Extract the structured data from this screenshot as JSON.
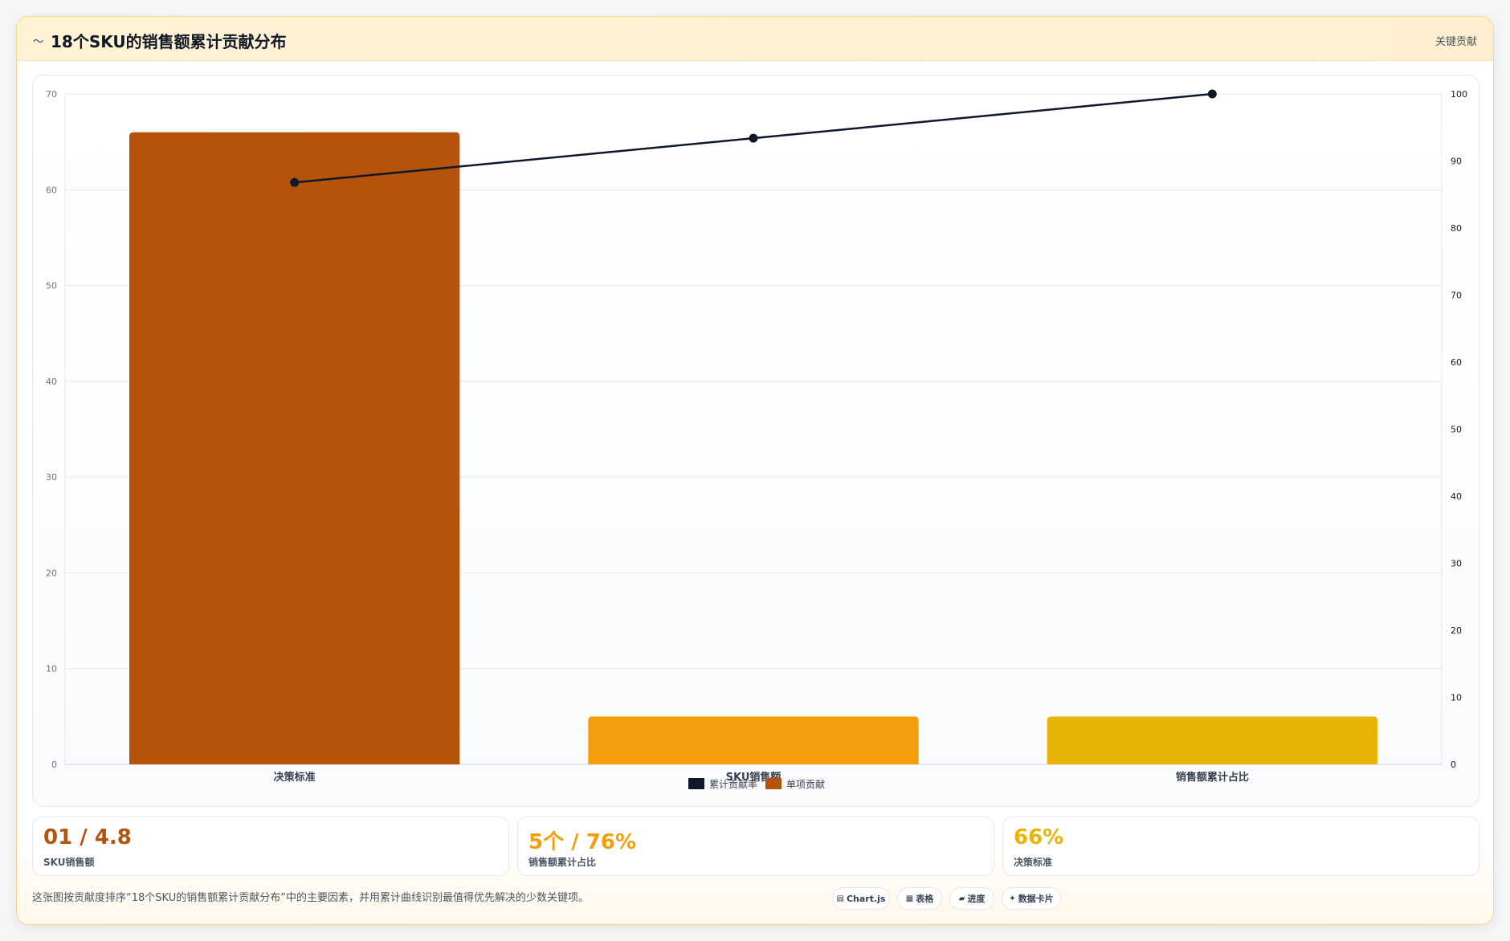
{
  "header": {
    "icon": "chart-line-icon",
    "icon_glyph": "〜",
    "title": "18个SKU的销售额累计贡献分布",
    "tag": "关键贡献"
  },
  "chart_data": {
    "type": "bar",
    "categories": [
      "决策标准",
      "SKU销售额",
      "销售额累计占比"
    ],
    "series": [
      {
        "name": "单项贡献",
        "type": "bar",
        "axis": "left",
        "values": [
          66,
          5,
          5
        ],
        "colors": [
          "#b45309",
          "#f59e0b",
          "#eab308"
        ]
      },
      {
        "name": "累计贡献率",
        "type": "line",
        "axis": "right",
        "values": [
          86.8,
          93.4,
          100
        ],
        "color": "#0f172a"
      }
    ],
    "y_left": {
      "min": 0,
      "max": 70,
      "ticks": [
        0,
        10,
        20,
        30,
        40,
        50,
        60,
        70
      ]
    },
    "y_right": {
      "min": 0,
      "max": 100,
      "ticks": [
        0,
        10,
        20,
        30,
        40,
        50,
        60,
        70,
        80,
        90,
        100
      ]
    },
    "grid": true,
    "legend": {
      "position": "bottom",
      "items": [
        {
          "label": "累计贡献率",
          "color": "#0f172a"
        },
        {
          "label": "单项贡献",
          "color": "#b45309"
        }
      ]
    }
  },
  "kpis": [
    {
      "value": "01 / 4.8",
      "label": "SKU销售额",
      "color": "#b45309"
    },
    {
      "value": "5个 / 76%",
      "label": "销售额累计占比",
      "color": "#f59e0b"
    },
    {
      "value": "66%",
      "label": "决策标准",
      "color": "#eab308"
    }
  ],
  "footer": {
    "note": "这张图按贡献度排序“18个SKU的销售额累计贡献分布”中的主要因素，并用累计曲线识别最值得优先解决的少数关键项。",
    "chips": [
      {
        "icon": "chart-icon",
        "glyph": "▤",
        "label": "Chart.js"
      },
      {
        "icon": "table-icon",
        "glyph": "▦",
        "label": "表格"
      },
      {
        "icon": "progress-icon",
        "glyph": "▰",
        "label": "进度"
      },
      {
        "icon": "sparkle-icon",
        "glyph": "✦",
        "label": "数据卡片"
      }
    ]
  }
}
